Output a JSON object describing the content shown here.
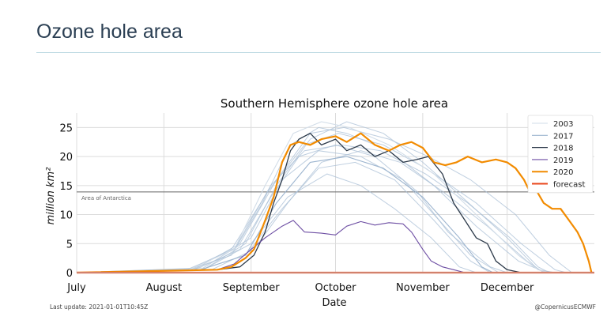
{
  "page": {
    "title": "Ozone hole area"
  },
  "footer": {
    "last_update": "Last update: 2021-01-01T10:45Z",
    "credit": "@CopernicusECMWF"
  },
  "chart_data": {
    "type": "line",
    "title": "Southern Hemisphere ozone hole area",
    "xlabel": "Date",
    "ylabel": "million km²",
    "xlim": [
      "07-01",
      "12-31"
    ],
    "ylim": [
      0,
      27.5
    ],
    "x_ticks": [
      {
        "date": "07-01",
        "label": "July"
      },
      {
        "date": "08-01",
        "label": "August"
      },
      {
        "date": "09-01",
        "label": "September"
      },
      {
        "date": "10-01",
        "label": "October"
      },
      {
        "date": "11-01",
        "label": "November"
      },
      {
        "date": "12-01",
        "label": "December"
      }
    ],
    "y_ticks": [
      0,
      5,
      10,
      15,
      20,
      25
    ],
    "grid": true,
    "legend_position": "top-right",
    "reference_line": {
      "value": 13.9,
      "label": "Area of Antarctica",
      "color": "#666666"
    },
    "background_series_color": "#a9bfd6",
    "background_series": [
      [
        [
          "07-01",
          0
        ],
        [
          "08-10",
          0.5
        ],
        [
          "08-25",
          3
        ],
        [
          "09-05",
          12
        ],
        [
          "09-15",
          22
        ],
        [
          "09-25",
          25
        ],
        [
          "10-05",
          24
        ],
        [
          "10-20",
          21
        ],
        [
          "11-05",
          15
        ],
        [
          "11-20",
          8
        ],
        [
          "12-05",
          2
        ],
        [
          "12-15",
          0
        ]
      ],
      [
        [
          "07-01",
          0
        ],
        [
          "08-12",
          0.5
        ],
        [
          "08-28",
          4
        ],
        [
          "09-08",
          13
        ],
        [
          "09-18",
          20
        ],
        [
          "10-01",
          22
        ],
        [
          "10-15",
          20
        ],
        [
          "10-30",
          14
        ],
        [
          "11-10",
          7
        ],
        [
          "11-25",
          1
        ],
        [
          "12-01",
          0
        ]
      ],
      [
        [
          "07-01",
          0
        ],
        [
          "08-15",
          0.5
        ],
        [
          "08-30",
          5
        ],
        [
          "09-10",
          15
        ],
        [
          "09-22",
          23
        ],
        [
          "10-05",
          26
        ],
        [
          "10-18",
          24
        ],
        [
          "11-01",
          19
        ],
        [
          "11-15",
          13
        ],
        [
          "12-01",
          6
        ],
        [
          "12-12",
          0.5
        ],
        [
          "12-18",
          0
        ]
      ],
      [
        [
          "07-01",
          0
        ],
        [
          "08-15",
          0.8
        ],
        [
          "09-01",
          6
        ],
        [
          "09-12",
          16
        ],
        [
          "09-25",
          21
        ],
        [
          "10-10",
          20
        ],
        [
          "10-25",
          16
        ],
        [
          "11-05",
          10
        ],
        [
          "11-18",
          3
        ],
        [
          "11-28",
          0
        ]
      ],
      [
        [
          "07-01",
          0
        ],
        [
          "08-10",
          0.5
        ],
        [
          "08-25",
          4
        ],
        [
          "09-07",
          14
        ],
        [
          "09-20",
          22
        ],
        [
          "10-02",
          24
        ],
        [
          "10-18",
          22
        ],
        [
          "11-02",
          18
        ],
        [
          "11-20",
          12
        ],
        [
          "12-06",
          5
        ],
        [
          "12-18",
          0.5
        ],
        [
          "12-22",
          0
        ]
      ],
      [
        [
          "07-01",
          0
        ],
        [
          "08-14",
          0.5
        ],
        [
          "08-30",
          3
        ],
        [
          "09-12",
          11
        ],
        [
          "09-25",
          18
        ],
        [
          "10-08",
          19
        ],
        [
          "10-22",
          16
        ],
        [
          "11-05",
          9
        ],
        [
          "11-18",
          2
        ],
        [
          "11-25",
          0
        ]
      ],
      [
        [
          "07-01",
          0
        ],
        [
          "08-18",
          0.5
        ],
        [
          "09-02",
          4
        ],
        [
          "09-14",
          12
        ],
        [
          "09-26",
          19
        ],
        [
          "10-10",
          21
        ],
        [
          "10-24",
          19
        ],
        [
          "11-08",
          14
        ],
        [
          "11-24",
          8
        ],
        [
          "12-08",
          2
        ],
        [
          "12-14",
          0
        ]
      ],
      [
        [
          "07-01",
          0
        ],
        [
          "08-12",
          0.6
        ],
        [
          "08-28",
          5
        ],
        [
          "09-10",
          16
        ],
        [
          "09-22",
          24
        ],
        [
          "10-04",
          25
        ],
        [
          "10-20",
          23
        ],
        [
          "11-03",
          20
        ],
        [
          "11-18",
          16
        ],
        [
          "12-04",
          10
        ],
        [
          "12-16",
          3
        ],
        [
          "12-24",
          0
        ]
      ],
      [
        [
          "07-01",
          0
        ],
        [
          "08-15",
          0.5
        ],
        [
          "09-01",
          5
        ],
        [
          "09-14",
          13
        ],
        [
          "09-28",
          17
        ],
        [
          "10-10",
          15
        ],
        [
          "10-22",
          11
        ],
        [
          "11-04",
          6
        ],
        [
          "11-14",
          1
        ],
        [
          "11-20",
          0
        ]
      ],
      [
        [
          "07-01",
          0
        ],
        [
          "08-10",
          0.7
        ],
        [
          "08-26",
          4
        ],
        [
          "09-08",
          15
        ],
        [
          "09-20",
          21
        ],
        [
          "10-03",
          22
        ],
        [
          "10-17",
          21
        ],
        [
          "11-02",
          17
        ],
        [
          "11-17",
          12
        ],
        [
          "12-02",
          6
        ],
        [
          "12-12",
          1
        ],
        [
          "12-16",
          0
        ]
      ]
    ],
    "series": [
      {
        "name": "2003",
        "color": "#d2dde8",
        "width": 1.1,
        "points": [
          [
            "07-01",
            0
          ],
          [
            "08-10",
            0.5
          ],
          [
            "08-26",
            4
          ],
          [
            "09-06",
            15
          ],
          [
            "09-16",
            24
          ],
          [
            "09-26",
            26
          ],
          [
            "10-06",
            25
          ],
          [
            "10-20",
            22
          ],
          [
            "11-05",
            17
          ],
          [
            "11-20",
            10
          ],
          [
            "12-05",
            3
          ],
          [
            "12-12",
            0.5
          ],
          [
            "12-16",
            0
          ]
        ]
      },
      {
        "name": "2017",
        "color": "#9db5cf",
        "width": 1.1,
        "points": [
          [
            "07-01",
            0
          ],
          [
            "08-14",
            0.5
          ],
          [
            "08-30",
            3
          ],
          [
            "09-10",
            12
          ],
          [
            "09-22",
            19
          ],
          [
            "10-05",
            20
          ],
          [
            "10-18",
            18
          ],
          [
            "11-01",
            13
          ],
          [
            "11-14",
            6
          ],
          [
            "11-22",
            1
          ],
          [
            "11-26",
            0
          ]
        ]
      },
      {
        "name": "2018",
        "color": "#2d3a4a",
        "width": 1.3,
        "points": [
          [
            "07-01",
            0
          ],
          [
            "08-20",
            0.5
          ],
          [
            "08-28",
            1
          ],
          [
            "09-02",
            3
          ],
          [
            "09-06",
            7
          ],
          [
            "09-09",
            12
          ],
          [
            "09-12",
            16
          ],
          [
            "09-15",
            21
          ],
          [
            "09-18",
            23
          ],
          [
            "09-22",
            24
          ],
          [
            "09-26",
            22
          ],
          [
            "10-01",
            23
          ],
          [
            "10-05",
            21
          ],
          [
            "10-10",
            22
          ],
          [
            "10-15",
            20
          ],
          [
            "10-20",
            21
          ],
          [
            "10-25",
            19
          ],
          [
            "10-30",
            19.5
          ],
          [
            "11-03",
            20
          ],
          [
            "11-08",
            17
          ],
          [
            "11-12",
            12
          ],
          [
            "11-16",
            9
          ],
          [
            "11-20",
            6
          ],
          [
            "11-24",
            5
          ],
          [
            "11-27",
            2
          ],
          [
            "12-01",
            0.5
          ],
          [
            "12-06",
            0
          ]
        ]
      },
      {
        "name": "2019",
        "color": "#6d4ea3",
        "width": 1.1,
        "points": [
          [
            "07-01",
            0
          ],
          [
            "08-20",
            0.5
          ],
          [
            "08-26",
            1.5
          ],
          [
            "09-01",
            4
          ],
          [
            "09-06",
            6
          ],
          [
            "09-12",
            8
          ],
          [
            "09-16",
            9
          ],
          [
            "09-20",
            7
          ],
          [
            "09-26",
            6.8
          ],
          [
            "10-01",
            6.5
          ],
          [
            "10-05",
            8
          ],
          [
            "10-10",
            8.8
          ],
          [
            "10-15",
            8.2
          ],
          [
            "10-20",
            8.6
          ],
          [
            "10-25",
            8.4
          ],
          [
            "10-28",
            7
          ],
          [
            "11-01",
            4
          ],
          [
            "11-04",
            2
          ],
          [
            "11-08",
            1
          ],
          [
            "11-12",
            0.5
          ],
          [
            "11-16",
            0
          ]
        ]
      },
      {
        "name": "2020",
        "color": "#f28b00",
        "width": 2.2,
        "points": [
          [
            "07-01",
            0
          ],
          [
            "08-20",
            0.5
          ],
          [
            "08-25",
            1
          ],
          [
            "08-30",
            2.5
          ],
          [
            "09-02",
            4
          ],
          [
            "09-06",
            9
          ],
          [
            "09-09",
            13
          ],
          [
            "09-12",
            19
          ],
          [
            "09-15",
            22
          ],
          [
            "09-18",
            22.5
          ],
          [
            "09-22",
            22
          ],
          [
            "09-26",
            23
          ],
          [
            "10-01",
            23.5
          ],
          [
            "10-05",
            22.5
          ],
          [
            "10-10",
            24
          ],
          [
            "10-15",
            22
          ],
          [
            "10-20",
            21
          ],
          [
            "10-24",
            22
          ],
          [
            "10-28",
            22.5
          ],
          [
            "11-01",
            21.5
          ],
          [
            "11-05",
            19
          ],
          [
            "11-09",
            18.5
          ],
          [
            "11-13",
            19
          ],
          [
            "11-17",
            20
          ],
          [
            "11-22",
            19
          ],
          [
            "11-27",
            19.5
          ],
          [
            "12-01",
            19
          ],
          [
            "12-04",
            18
          ],
          [
            "12-07",
            16
          ],
          [
            "12-09",
            14
          ],
          [
            "12-11",
            14.5
          ],
          [
            "12-14",
            12
          ],
          [
            "12-17",
            11
          ],
          [
            "12-20",
            11
          ],
          [
            "12-23",
            9
          ],
          [
            "12-26",
            7
          ],
          [
            "12-28",
            5
          ],
          [
            "12-30",
            2
          ],
          [
            "12-31",
            0
          ]
        ]
      },
      {
        "name": "forecast",
        "color": "#e8471c",
        "width": 2.2,
        "points": []
      }
    ],
    "forecast_baseline": 0
  }
}
